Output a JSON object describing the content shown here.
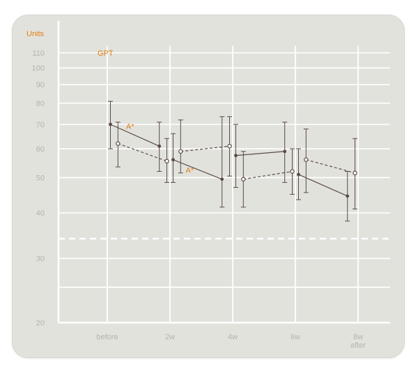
{
  "chart_data": {
    "type": "line",
    "title": "GPT",
    "ylabel": "Units",
    "xlabel": "",
    "yscale": "log",
    "ylim": [
      20,
      115
    ],
    "y_ticks": [
      20,
      30,
      40,
      50,
      60,
      70,
      80,
      90,
      100,
      110
    ],
    "y_tick_labels": [
      "20",
      "30",
      "40",
      "50",
      "60",
      "70",
      "80",
      "90",
      "100",
      "110"
    ],
    "categories": [
      "before",
      "2w",
      "4w",
      "6w",
      "8w\nafter"
    ],
    "x_tick_labels": [
      "before",
      "2w",
      "4w",
      "6w",
      "8w",
      "after"
    ],
    "reference_line": {
      "value": 34,
      "style": "dashed",
      "color": "#ffffff"
    },
    "grid": true,
    "line_color": "#5a4a45",
    "accent_color": "#e07d10",
    "series": [
      {
        "style": "solid",
        "marker": "filled",
        "x": [
          0.05,
          0.83,
          1.05,
          1.83,
          2.05,
          2.83,
          3.05,
          3.83
        ],
        "segments": [
          [
            0,
            1
          ],
          [
            2,
            3
          ],
          [
            4,
            5
          ],
          [
            6,
            7
          ]
        ],
        "values": [
          70,
          61,
          56,
          49.5,
          57.5,
          59,
          51,
          44.5
        ],
        "err_low": [
          60,
          52,
          48.5,
          41.5,
          47,
          48.5,
          43.5,
          38
        ],
        "err_high": [
          81,
          71,
          66,
          73.5,
          70,
          71,
          60,
          52
        ]
      },
      {
        "style": "dashed",
        "marker": "open",
        "x": [
          0.17,
          0.95,
          1.17,
          1.95,
          2.17,
          2.95,
          3.17,
          3.95
        ],
        "segments": [
          [
            0,
            1
          ],
          [
            2,
            3
          ],
          [
            4,
            5
          ],
          [
            6,
            7
          ]
        ],
        "values": [
          62,
          55.5,
          59,
          61,
          49.5,
          52,
          56,
          51.5
        ],
        "err_low": [
          53.5,
          48.5,
          51.5,
          50.5,
          41.5,
          45,
          45.5,
          41
        ],
        "err_high": [
          71,
          64,
          72,
          73.5,
          59,
          60,
          68,
          64
        ]
      }
    ],
    "annotations": [
      "A*",
      "A*"
    ]
  }
}
